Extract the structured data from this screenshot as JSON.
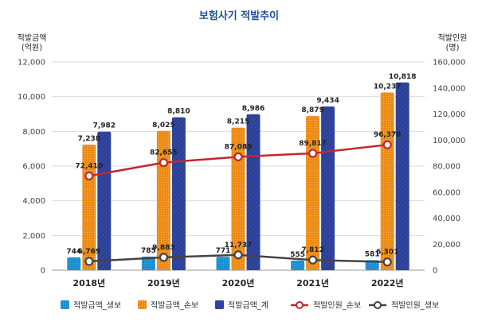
{
  "chart_data": {
    "type": "bar",
    "title": "보험사기 적발추이",
    "ylabel_left": "적발금액\n(억원)",
    "ylabel_right": "적발인원\n(명)",
    "ylim_left": [
      0,
      12000
    ],
    "yticks_left": [
      "0",
      "2,000",
      "4,000",
      "6,000",
      "8,000",
      "10,000",
      "12,000"
    ],
    "ylim_right": [
      0,
      160000
    ],
    "yticks_right": [
      "0",
      "20,000",
      "40,000",
      "60,000",
      "80,000",
      "100,000",
      "120,000",
      "140,000",
      "160,000"
    ],
    "categories": [
      "2018년",
      "2019년",
      "2020년",
      "2021년",
      "2022년"
    ],
    "bar_series": [
      {
        "name": "적발금액_생보",
        "color": "#1b8fce",
        "values": [
          744,
          785,
          771,
          555,
          581
        ],
        "labels": [
          "744",
          "785",
          "771",
          "555",
          "581"
        ]
      },
      {
        "name": "적발금액_손보",
        "color": "#ec8a12",
        "values": [
          7238,
          8025,
          8215,
          8879,
          10237
        ],
        "labels": [
          "7,238",
          "8,025",
          "8,215",
          "8,879",
          "10,237"
        ]
      },
      {
        "name": "적발금액_계",
        "color": "#2c3f96",
        "values": [
          7982,
          8810,
          8986,
          9434,
          10818
        ],
        "labels": [
          "7,982",
          "8,810",
          "8,986",
          "9,434",
          "10,818"
        ]
      }
    ],
    "line_series": [
      {
        "name": "적발인원_손보",
        "color": "#c0282d",
        "values": [
          72410,
          82655,
          87089,
          89817,
          96378
        ],
        "labels": [
          "72,410",
          "82,655",
          "87,089",
          "89,817",
          "96,378"
        ]
      },
      {
        "name": "적발인원_생보",
        "color": "#444444",
        "values": [
          6769,
          9883,
          11737,
          7812,
          6301
        ],
        "labels": [
          "6,769",
          "9,883",
          "11,737",
          "7,812",
          "6,301"
        ]
      }
    ],
    "grid": true,
    "legend_position": "bottom"
  }
}
